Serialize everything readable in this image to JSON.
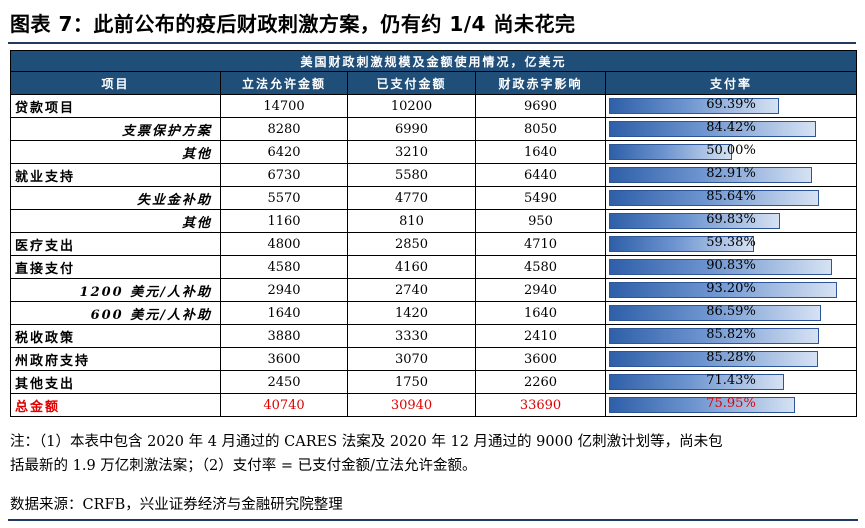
{
  "title": "图表 7：此前公布的疫后财政刺激方案，仍有约 1/4 尚未花完",
  "table": {
    "super_header": "美国财政刺激规模及金额使用情况，亿美元",
    "headers": [
      "项目",
      "立法允许金额",
      "已支付金额",
      "财政赤字影响",
      "支付率"
    ],
    "rows": [
      {
        "name": "贷款项目",
        "sub": false,
        "authorized": "14700",
        "paid": "10200",
        "deficit": "9690",
        "rate": "69.39%",
        "rate_value": 69.39
      },
      {
        "name": "支票保护方案",
        "sub": true,
        "authorized": "8280",
        "paid": "6990",
        "deficit": "8050",
        "rate": "84.42%",
        "rate_value": 84.42
      },
      {
        "name": "其他",
        "sub": true,
        "authorized": "6420",
        "paid": "3210",
        "deficit": "1640",
        "rate": "50.00%",
        "rate_value": 50.0
      },
      {
        "name": "就业支持",
        "sub": false,
        "authorized": "6730",
        "paid": "5580",
        "deficit": "6440",
        "rate": "82.91%",
        "rate_value": 82.91
      },
      {
        "name": "失业金补助",
        "sub": true,
        "authorized": "5570",
        "paid": "4770",
        "deficit": "5490",
        "rate": "85.64%",
        "rate_value": 85.64
      },
      {
        "name": "其他",
        "sub": true,
        "authorized": "1160",
        "paid": "810",
        "deficit": "950",
        "rate": "69.83%",
        "rate_value": 69.83
      },
      {
        "name": "医疗支出",
        "sub": false,
        "authorized": "4800",
        "paid": "2850",
        "deficit": "4710",
        "rate": "59.38%",
        "rate_value": 59.38
      },
      {
        "name": "直接支付",
        "sub": false,
        "authorized": "4580",
        "paid": "4160",
        "deficit": "4580",
        "rate": "90.83%",
        "rate_value": 90.83
      },
      {
        "name": "1200 美元/人补助",
        "sub": true,
        "authorized": "2940",
        "paid": "2740",
        "deficit": "2940",
        "rate": "93.20%",
        "rate_value": 93.2
      },
      {
        "name": "600 美元/人补助",
        "sub": true,
        "authorized": "1640",
        "paid": "1420",
        "deficit": "1640",
        "rate": "86.59%",
        "rate_value": 86.59
      },
      {
        "name": "税收政策",
        "sub": false,
        "authorized": "3880",
        "paid": "3330",
        "deficit": "2410",
        "rate": "85.82%",
        "rate_value": 85.82
      },
      {
        "name": "州政府支持",
        "sub": false,
        "authorized": "3600",
        "paid": "3070",
        "deficit": "3600",
        "rate": "85.28%",
        "rate_value": 85.28
      },
      {
        "name": "其他支出",
        "sub": false,
        "authorized": "2450",
        "paid": "1750",
        "deficit": "2260",
        "rate": "71.43%",
        "rate_value": 71.43
      }
    ],
    "total": {
      "name": "总金额",
      "authorized": "40740",
      "paid": "30940",
      "deficit": "33690",
      "rate": "75.95%",
      "rate_value": 75.95
    }
  },
  "colors": {
    "header_bg": "#1f4e79",
    "total_text": "#e00000",
    "bar": "#2e5fa8"
  },
  "notes": {
    "line1": "注：（1）本表中包含 2020 年 4 月通过的 CARES 法案及 2020 年 12 月通过的 9000 亿刺激计划等，尚未包",
    "line2": "括最新的 1.9 万亿刺激法案；（2）支付率 = 已支付金额/立法允许金额。"
  },
  "source": "数据来源：CRFB，兴业证券经济与金融研究院整理"
}
